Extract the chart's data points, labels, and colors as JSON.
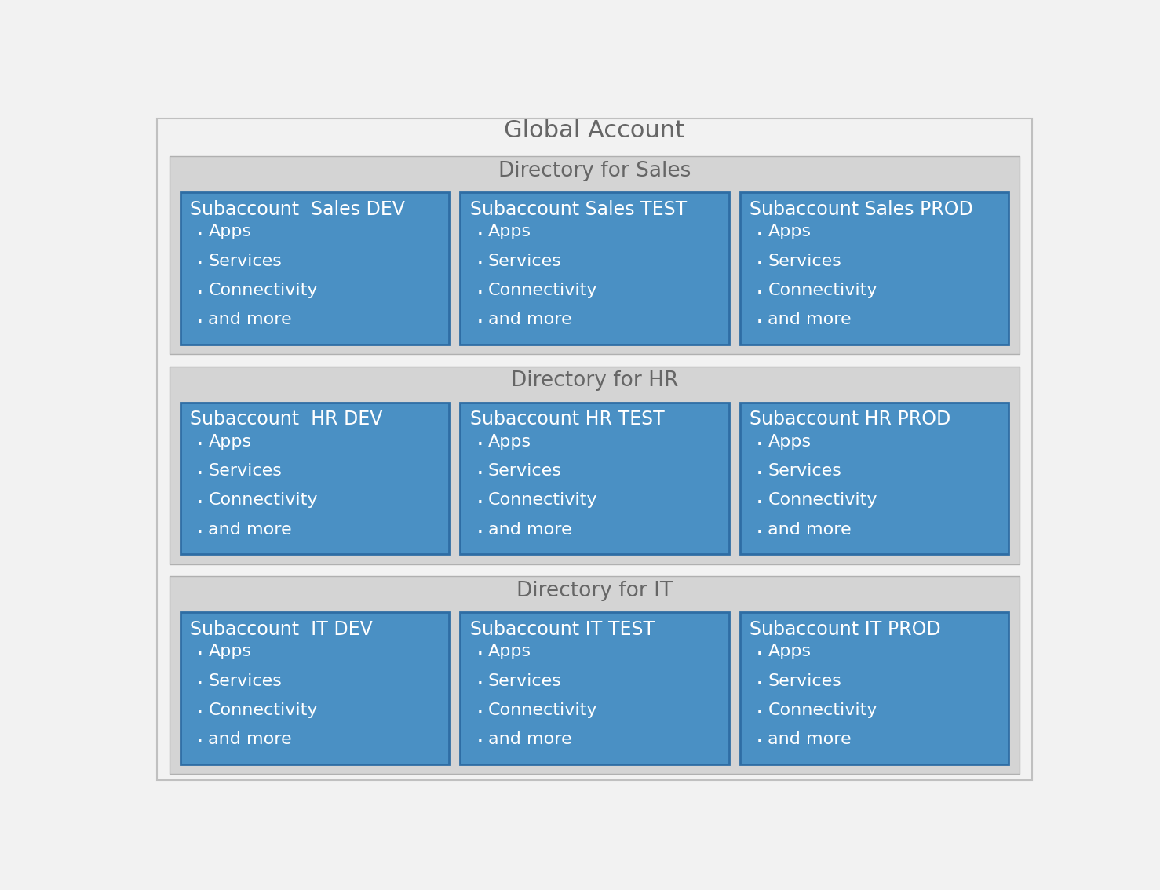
{
  "title": "Global Account",
  "title_fontsize": 22,
  "title_color": "#666666",
  "bg_color": "#f2f2f2",
  "outer_border_color": "#c0c0c0",
  "directory_bg": "#d4d4d4",
  "directory_border": "#b0b0b0",
  "subaccount_bg": "#4a90c4",
  "subaccount_border": "#2e6da4",
  "subaccount_text_color": "#ffffff",
  "directory_text_color": "#666666",
  "directories": [
    {
      "label": "Directory for Sales",
      "subaccounts": [
        "Subaccount  Sales DEV",
        "Subaccount Sales TEST",
        "Subaccount Sales PROD"
      ]
    },
    {
      "label": "Directory for HR",
      "subaccounts": [
        "Subaccount  HR DEV",
        "Subaccount HR TEST",
        "Subaccount HR PROD"
      ]
    },
    {
      "label": "Directory for IT",
      "subaccounts": [
        "Subaccount  IT DEV",
        "Subaccount IT TEST",
        "Subaccount IT PROD"
      ]
    }
  ],
  "items": [
    "Apps",
    "Services",
    "Connectivity",
    "and more"
  ],
  "dir_label_fontsize": 19,
  "sub_title_fontsize": 17,
  "item_fontsize": 16
}
